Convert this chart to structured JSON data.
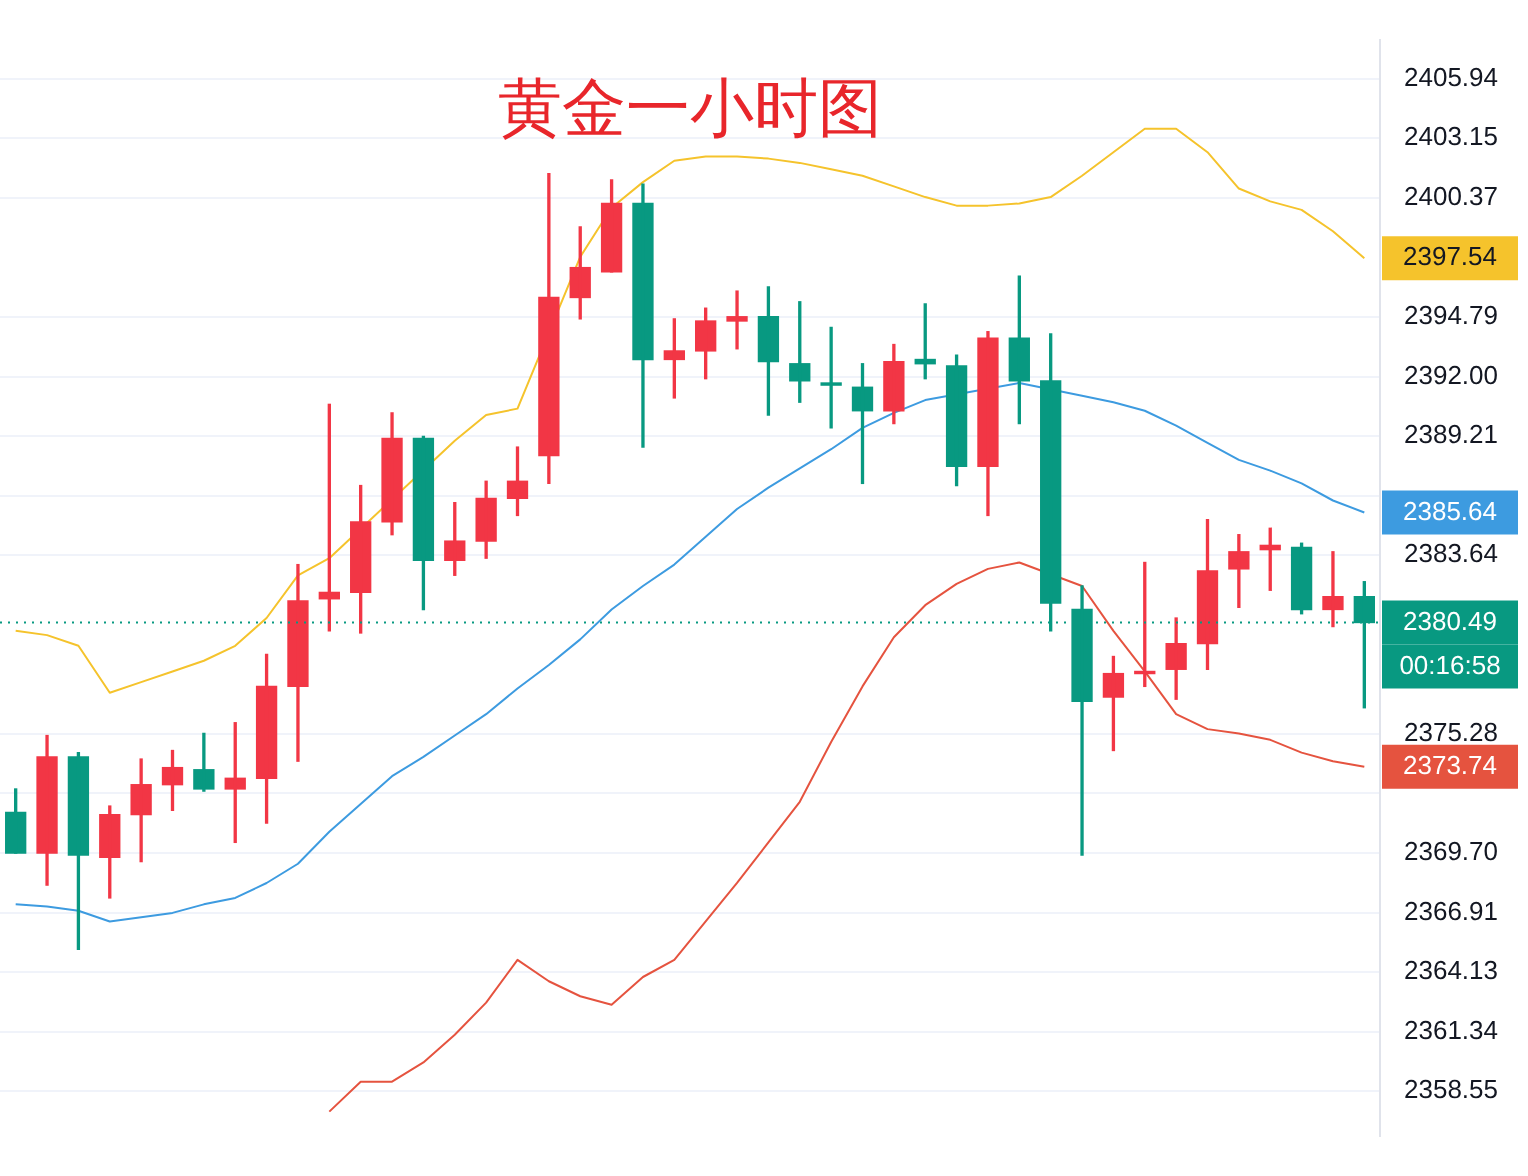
{
  "chart_data": {
    "type": "candlestick",
    "title": "黄金一小时图",
    "categories": [
      null,
      null,
      null,
      null,
      null,
      null,
      null,
      null,
      null,
      null,
      null,
      null,
      null,
      null,
      null,
      null,
      null,
      null,
      null,
      null,
      null,
      null,
      null,
      null,
      null,
      null,
      null,
      null,
      null,
      null,
      null,
      null,
      null,
      null,
      null,
      null,
      null,
      null,
      null,
      null,
      null,
      null,
      null,
      null
    ],
    "ohlc": [
      [
        2371.6,
        2372.7,
        2369.7,
        2369.7
      ],
      [
        2369.7,
        2375.2,
        2368.2,
        2374.2
      ],
      [
        2374.2,
        2374.4,
        2365.2,
        2369.6
      ],
      [
        2369.5,
        2371.9,
        2367.6,
        2371.5
      ],
      [
        2371.5,
        2374.1,
        2369.3,
        2372.9
      ],
      [
        2372.9,
        2374.5,
        2371.7,
        2373.7
      ],
      [
        2373.6,
        2375.3,
        2372.6,
        2372.7
      ],
      [
        2372.7,
        2375.8,
        2370.2,
        2373.2
      ],
      [
        2373.2,
        2379.0,
        2371.1,
        2377.5
      ],
      [
        2377.5,
        2383.2,
        2374.0,
        2381.5
      ],
      [
        2381.6,
        2390.7,
        2380.1,
        2381.9
      ],
      [
        2381.9,
        2386.9,
        2380.0,
        2385.2
      ],
      [
        2385.2,
        2390.3,
        2384.6,
        2389.1
      ],
      [
        2389.1,
        2389.2,
        2381.1,
        2383.4
      ],
      [
        2383.4,
        2386.1,
        2382.7,
        2384.3
      ],
      [
        2384.3,
        2387.1,
        2383.5,
        2386.3
      ],
      [
        2386.3,
        2388.7,
        2385.5,
        2387.1
      ],
      [
        2388.3,
        2401.5,
        2387.0,
        2395.7
      ],
      [
        2395.7,
        2399.0,
        2394.7,
        2397.1
      ],
      [
        2396.9,
        2401.2,
        2396.9,
        2400.1
      ],
      [
        2400.1,
        2401.0,
        2388.7,
        2392.8
      ],
      [
        2392.8,
        2394.7,
        2391.0,
        2393.2
      ],
      [
        2393.2,
        2395.2,
        2391.9,
        2394.6
      ],
      [
        2394.6,
        2396.0,
        2393.3,
        2394.8
      ],
      [
        2394.8,
        2396.2,
        2390.2,
        2392.7
      ],
      [
        2392.6,
        2395.5,
        2390.8,
        2391.8
      ],
      [
        2391.7,
        2394.3,
        2389.6,
        2391.6
      ],
      [
        2391.5,
        2392.6,
        2387.0,
        2390.4
      ],
      [
        2390.4,
        2393.5,
        2389.8,
        2392.7
      ],
      [
        2392.8,
        2395.4,
        2391.9,
        2392.6
      ],
      [
        2392.5,
        2393.0,
        2386.9,
        2387.8
      ],
      [
        2387.8,
        2394.1,
        2385.5,
        2393.8
      ],
      [
        2393.8,
        2396.7,
        2389.8,
        2391.8
      ],
      [
        2391.8,
        2394.0,
        2380.1,
        2381.4
      ],
      [
        2381.1,
        2382.2,
        2369.6,
        2376.8
      ],
      [
        2377.0,
        2378.9,
        2374.5,
        2378.1
      ],
      [
        2378.1,
        2383.3,
        2377.5,
        2378.2
      ],
      [
        2378.3,
        2380.7,
        2376.9,
        2379.5
      ],
      [
        2379.5,
        2385.3,
        2378.3,
        2382.9
      ],
      [
        2383.0,
        2384.6,
        2381.2,
        2383.8
      ],
      [
        2383.9,
        2384.9,
        2382.0,
        2384.1
      ],
      [
        2384.0,
        2384.2,
        2380.9,
        2381.1
      ],
      [
        2381.1,
        2383.8,
        2380.3,
        2381.7
      ],
      [
        2381.7,
        2382.4,
        2376.5,
        2380.49
      ]
    ],
    "colors": [
      "#089981",
      "#f23645",
      "#089981",
      "#f23645",
      "#f23645",
      "#f23645",
      "#089981",
      "#f23645",
      "#f23645",
      "#f23645",
      "#f23645",
      "#f23645",
      "#f23645",
      "#089981",
      "#f23645",
      "#f23645",
      "#f23645",
      "#f23645",
      "#f23645",
      "#f23645",
      "#089981",
      "#f23645",
      "#f23645",
      "#f23645",
      "#089981",
      "#089981",
      "#089981",
      "#089981",
      "#f23645",
      "#089981",
      "#089981",
      "#f23645",
      "#089981",
      "#089981",
      "#089981",
      "#f23645",
      "#f23645",
      "#f23645",
      "#f23645",
      "#f23645",
      "#f23645",
      "#089981",
      "#f23645",
      "#089981"
    ],
    "series": [
      {
        "type": "line",
        "color": "#f5c32c",
        "values": [
          2380.1,
          2379.9,
          2379.4,
          2377.2,
          2377.7,
          2378.2,
          2378.7,
          2379.4,
          2380.7,
          2382.7,
          2383.5,
          null,
          null,
          null,
          2389.0,
          2390.2,
          2390.5,
          null,
          2397.6,
          2399.9,
          2401.1,
          2402.1,
          2402.3,
          2402.3,
          2402.2,
          2402.0,
          2401.7,
          2401.4,
          2400.9,
          2400.4,
          2400.0,
          2400.0,
          2400.1,
          2400.4,
          2401.4,
          2402.5,
          2403.6,
          2403.6,
          2402.5,
          2400.8,
          2400.2,
          2399.8,
          2398.8,
          2397.54
        ],
        "value_labels": [
          null,
          null,
          null,
          null,
          null,
          null,
          null,
          null,
          null,
          null,
          null,
          null,
          null,
          null,
          null,
          null,
          null,
          null,
          null,
          null,
          null,
          null,
          null,
          null,
          null,
          null,
          null,
          null,
          null,
          null,
          null,
          null,
          null,
          null,
          null,
          null,
          null,
          null,
          null,
          null,
          null,
          null,
          null,
          "2397.54"
        ]
      },
      {
        "type": "line",
        "color": "#3d9be0",
        "values": [
          2367.3,
          2367.2,
          2367.0,
          2366.5,
          2366.7,
          2366.9,
          2367.3,
          2367.6,
          2368.3,
          2369.2,
          2370.7,
          2372.0,
          2373.3,
          2374.2,
          2375.2,
          2376.2,
          2377.4,
          2378.5,
          2379.7,
          2381.1,
          2382.2,
          2383.2,
          2384.5,
          2385.8,
          2386.8,
          2387.7,
          2388.6,
          2389.6,
          2390.3,
          2390.9,
          null,
          null,
          2391.7,
          null,
          2391.1,
          2390.8,
          2390.4,
          2389.7,
          2388.9,
          2388.1,
          2387.6,
          2387.0,
          2386.2,
          2385.64
        ],
        "value_labels": [
          null,
          null,
          null,
          null,
          null,
          null,
          null,
          null,
          null,
          null,
          null,
          null,
          null,
          null,
          null,
          null,
          null,
          null,
          null,
          null,
          null,
          null,
          null,
          null,
          null,
          null,
          null,
          null,
          null,
          null,
          null,
          null,
          null,
          null,
          null,
          null,
          null,
          null,
          null,
          null,
          null,
          null,
          null,
          "2385.64"
        ]
      },
      {
        "type": "line",
        "color": "#e5533f",
        "values": [
          null,
          null,
          null,
          null,
          null,
          null,
          null,
          null,
          null,
          null,
          2357.6,
          2359.0,
          2359.0,
          2359.9,
          2361.2,
          2362.7,
          2364.7,
          2363.7,
          2363.0,
          2362.6,
          2363.9,
          2364.7,
          2366.5,
          2368.3,
          2370.2,
          2372.1,
          2374.9,
          2377.5,
          2379.8,
          2381.3,
          2382.3,
          2383.0,
          2383.3,
          null,
          2382.2,
          2380.1,
          2378.2,
          2376.2,
          2375.5,
          2375.3,
          2375.0,
          2374.4,
          2374.0,
          2373.74
        ],
        "value_labels": [
          null,
          null,
          null,
          null,
          null,
          null,
          null,
          null,
          null,
          null,
          null,
          null,
          null,
          null,
          null,
          null,
          null,
          null,
          null,
          null,
          null,
          null,
          null,
          null,
          null,
          null,
          null,
          null,
          null,
          null,
          null,
          null,
          null,
          null,
          null,
          null,
          null,
          null,
          null,
          null,
          null,
          null,
          null,
          "2373.74"
        ]
      }
    ],
    "ylim": [
      2356.44,
      2407.77
    ],
    "yticks": [
      {
        "value": 2405.94,
        "label": "2405.94"
      },
      {
        "value": 2403.15,
        "label": "2403.15"
      },
      {
        "value": 2400.37,
        "label": "2400.37"
      },
      {
        "value": 2394.79,
        "label": "2394.79"
      },
      {
        "value": 2392,
        "label": "2392.00"
      },
      {
        "value": 2389.21,
        "label": "2389.21"
      },
      {
        "value": 2386.43,
        "label": null
      },
      {
        "value": 2383.64,
        "label": "2383.64"
      },
      {
        "value": 2375.28,
        "label": "2375.28"
      },
      {
        "value": 2372.49,
        "label": null
      },
      {
        "value": 2369.7,
        "label": "2369.70"
      },
      {
        "value": 2366.91,
        "label": "2366.91"
      },
      {
        "value": 2364.13,
        "label": "2364.13"
      },
      {
        "value": 2361.34,
        "label": "2361.34"
      },
      {
        "value": 2358.55,
        "label": "2358.55"
      }
    ],
    "grid": "y",
    "tick_labels": "y",
    "ref_lines": [
      {
        "axis": "y",
        "value": 2380.49,
        "label": "2380.49",
        "color": "#089981",
        "line_style": "dotted"
      }
    ],
    "annotations": [
      "00:16:58"
    ]
  }
}
